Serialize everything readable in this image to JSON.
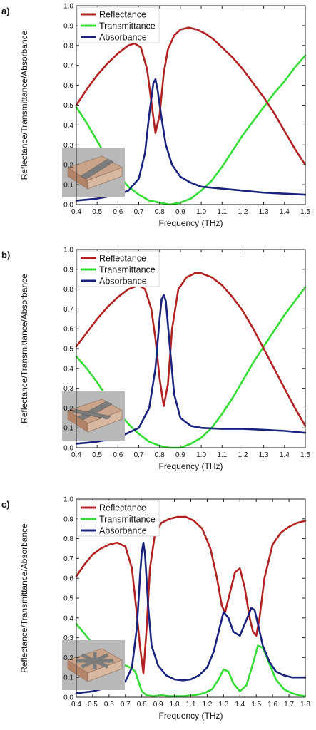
{
  "chart_data": [
    {
      "type": "line",
      "panel_label": "a)",
      "xlabel": "Frequency (THz)",
      "ylabel": "Reflectance/Transmittance/Absorbance",
      "xlim": [
        0.4,
        1.5
      ],
      "ylim": [
        0.0,
        1.0
      ],
      "xticks": [
        "0.4",
        "0.5",
        "0.6",
        "0.7",
        "0.8",
        "0.9",
        "1.0",
        "1.1",
        "1.2",
        "1.3",
        "1.4",
        "1.5"
      ],
      "yticks": [
        "0.0",
        "0.1",
        "0.2",
        "0.3",
        "0.4",
        "0.5",
        "0.6",
        "0.7",
        "0.8",
        "0.9",
        "1.0"
      ],
      "legend_position": "top-left",
      "grid": false,
      "inset_icon": "slab-with-bar-icon",
      "series": [
        {
          "name": "Reflectance",
          "color": "#b22222",
          "x": [
            0.4,
            0.45,
            0.5,
            0.55,
            0.6,
            0.65,
            0.68,
            0.71,
            0.74,
            0.76,
            0.78,
            0.8,
            0.82,
            0.84,
            0.87,
            0.9,
            0.94,
            0.98,
            1.02,
            1.06,
            1.1,
            1.15,
            1.2,
            1.25,
            1.3,
            1.35,
            1.4,
            1.45,
            1.5
          ],
          "y": [
            0.5,
            0.58,
            0.65,
            0.71,
            0.76,
            0.8,
            0.81,
            0.79,
            0.68,
            0.52,
            0.36,
            0.45,
            0.66,
            0.78,
            0.85,
            0.88,
            0.89,
            0.88,
            0.86,
            0.83,
            0.79,
            0.74,
            0.68,
            0.61,
            0.54,
            0.46,
            0.37,
            0.28,
            0.2
          ]
        },
        {
          "name": "Transmittance",
          "color": "#33dd33",
          "x": [
            0.4,
            0.45,
            0.5,
            0.55,
            0.6,
            0.65,
            0.7,
            0.75,
            0.8,
            0.85,
            0.9,
            0.95,
            1.0,
            1.05,
            1.1,
            1.15,
            1.2,
            1.25,
            1.3,
            1.35,
            1.4,
            1.45,
            1.5
          ],
          "y": [
            0.49,
            0.41,
            0.32,
            0.23,
            0.15,
            0.09,
            0.05,
            0.02,
            0.01,
            0.0,
            0.01,
            0.03,
            0.07,
            0.12,
            0.19,
            0.27,
            0.35,
            0.42,
            0.49,
            0.56,
            0.62,
            0.69,
            0.75
          ]
        },
        {
          "name": "Absorbance",
          "color": "#1a237e",
          "x": [
            0.4,
            0.5,
            0.6,
            0.65,
            0.7,
            0.73,
            0.75,
            0.77,
            0.78,
            0.79,
            0.81,
            0.83,
            0.86,
            0.9,
            0.95,
            1.0,
            1.1,
            1.2,
            1.3,
            1.4,
            1.5
          ],
          "y": [
            0.02,
            0.03,
            0.05,
            0.07,
            0.13,
            0.26,
            0.45,
            0.61,
            0.63,
            0.58,
            0.43,
            0.3,
            0.2,
            0.14,
            0.11,
            0.09,
            0.08,
            0.07,
            0.06,
            0.055,
            0.05
          ]
        }
      ]
    },
    {
      "type": "line",
      "panel_label": "b)",
      "xlabel": "Frequency (THz)",
      "ylabel": "Reflectance/Transmittance/Absorbance",
      "xlim": [
        0.4,
        1.5
      ],
      "ylim": [
        0.0,
        1.0
      ],
      "xticks": [
        "0.4",
        "0.5",
        "0.6",
        "0.7",
        "0.8",
        "0.9",
        "1.0",
        "1.1",
        "1.2",
        "1.3",
        "1.4",
        "1.5"
      ],
      "yticks": [
        "0.0",
        "0.1",
        "0.2",
        "0.3",
        "0.4",
        "0.5",
        "0.6",
        "0.7",
        "0.8",
        "0.9",
        "1.0"
      ],
      "legend_position": "top-left",
      "grid": false,
      "inset_icon": "slab-with-cross-icon",
      "series": [
        {
          "name": "Reflectance",
          "color": "#b22222",
          "x": [
            0.4,
            0.45,
            0.5,
            0.55,
            0.6,
            0.65,
            0.7,
            0.73,
            0.76,
            0.78,
            0.8,
            0.82,
            0.84,
            0.86,
            0.89,
            0.93,
            0.97,
            1.0,
            1.05,
            1.1,
            1.15,
            1.2,
            1.25,
            1.3,
            1.35,
            1.4,
            1.45,
            1.5
          ],
          "y": [
            0.51,
            0.58,
            0.65,
            0.71,
            0.76,
            0.8,
            0.82,
            0.8,
            0.7,
            0.55,
            0.35,
            0.21,
            0.32,
            0.6,
            0.8,
            0.86,
            0.88,
            0.88,
            0.86,
            0.82,
            0.76,
            0.69,
            0.6,
            0.5,
            0.4,
            0.3,
            0.2,
            0.11
          ]
        },
        {
          "name": "Transmittance",
          "color": "#33dd33",
          "x": [
            0.4,
            0.45,
            0.5,
            0.55,
            0.6,
            0.65,
            0.7,
            0.75,
            0.8,
            0.85,
            0.9,
            0.95,
            1.0,
            1.05,
            1.1,
            1.15,
            1.2,
            1.25,
            1.3,
            1.35,
            1.4,
            1.45,
            1.5
          ],
          "y": [
            0.46,
            0.4,
            0.33,
            0.25,
            0.18,
            0.12,
            0.07,
            0.03,
            0.01,
            0.0,
            0.0,
            0.02,
            0.05,
            0.1,
            0.17,
            0.25,
            0.34,
            0.43,
            0.51,
            0.59,
            0.67,
            0.74,
            0.81
          ]
        },
        {
          "name": "Absorbance",
          "color": "#1a237e",
          "x": [
            0.4,
            0.5,
            0.6,
            0.7,
            0.75,
            0.78,
            0.8,
            0.81,
            0.82,
            0.83,
            0.85,
            0.87,
            0.9,
            0.95,
            1.0,
            1.1,
            1.2,
            1.3,
            1.4,
            1.5
          ],
          "y": [
            0.02,
            0.03,
            0.05,
            0.1,
            0.2,
            0.4,
            0.65,
            0.75,
            0.77,
            0.74,
            0.5,
            0.27,
            0.15,
            0.11,
            0.1,
            0.095,
            0.095,
            0.09,
            0.085,
            0.075
          ]
        }
      ]
    },
    {
      "type": "line",
      "panel_label": "c)",
      "xlabel": "Frequency (THz)",
      "ylabel": "Reflectance/Transmittance/Absorbance",
      "xlim": [
        0.4,
        1.8
      ],
      "ylim": [
        0.0,
        1.0
      ],
      "xticks": [
        "0.4",
        "0.5",
        "0.6",
        "0.7",
        "0.8",
        "0.9",
        "1.0",
        "1.1",
        "1.2",
        "1.3",
        "1.4",
        "1.5",
        "1.6",
        "1.7",
        "1.8"
      ],
      "yticks": [
        "0.0",
        "0.1",
        "0.2",
        "0.3",
        "0.4",
        "0.5",
        "0.6",
        "0.7",
        "0.8",
        "0.9",
        "1.0"
      ],
      "legend_position": "top-left",
      "grid": false,
      "inset_icon": "slab-with-star-icon",
      "series": [
        {
          "name": "Reflectance",
          "color": "#b22222",
          "x": [
            0.4,
            0.45,
            0.5,
            0.55,
            0.6,
            0.65,
            0.7,
            0.74,
            0.77,
            0.79,
            0.81,
            0.83,
            0.85,
            0.88,
            0.92,
            0.97,
            1.02,
            1.07,
            1.12,
            1.17,
            1.22,
            1.26,
            1.29,
            1.31,
            1.34,
            1.37,
            1.4,
            1.43,
            1.46,
            1.48,
            1.5,
            1.52,
            1.55,
            1.6,
            1.65,
            1.7,
            1.75,
            1.8
          ],
          "y": [
            0.61,
            0.67,
            0.72,
            0.75,
            0.77,
            0.78,
            0.76,
            0.65,
            0.42,
            0.25,
            0.12,
            0.35,
            0.65,
            0.82,
            0.88,
            0.9,
            0.91,
            0.91,
            0.89,
            0.85,
            0.75,
            0.6,
            0.46,
            0.43,
            0.53,
            0.63,
            0.65,
            0.55,
            0.4,
            0.33,
            0.31,
            0.4,
            0.6,
            0.77,
            0.83,
            0.86,
            0.88,
            0.89
          ]
        },
        {
          "name": "Transmittance",
          "color": "#33dd33",
          "x": [
            0.4,
            0.45,
            0.5,
            0.55,
            0.6,
            0.65,
            0.7,
            0.73,
            0.76,
            0.78,
            0.8,
            0.83,
            0.87,
            0.92,
            0.97,
            1.05,
            1.12,
            1.18,
            1.23,
            1.27,
            1.3,
            1.33,
            1.36,
            1.4,
            1.44,
            1.48,
            1.51,
            1.54,
            1.58,
            1.62,
            1.67,
            1.72,
            1.76,
            1.8
          ],
          "y": [
            0.37,
            0.32,
            0.27,
            0.23,
            0.2,
            0.18,
            0.16,
            0.15,
            0.13,
            0.08,
            0.03,
            0.01,
            0.005,
            0.01,
            0.005,
            0.005,
            0.01,
            0.02,
            0.04,
            0.09,
            0.14,
            0.13,
            0.07,
            0.03,
            0.06,
            0.17,
            0.26,
            0.25,
            0.17,
            0.09,
            0.04,
            0.02,
            0.01,
            0.005
          ]
        },
        {
          "name": "Absorbance",
          "color": "#1a237e",
          "x": [
            0.4,
            0.5,
            0.6,
            0.7,
            0.74,
            0.77,
            0.79,
            0.8,
            0.81,
            0.82,
            0.84,
            0.86,
            0.9,
            0.95,
            1.0,
            1.05,
            1.1,
            1.15,
            1.2,
            1.24,
            1.27,
            1.3,
            1.33,
            1.36,
            1.4,
            1.44,
            1.47,
            1.49,
            1.51,
            1.54,
            1.58,
            1.62,
            1.67,
            1.72,
            1.76,
            1.8
          ],
          "y": [
            0.02,
            0.03,
            0.05,
            0.08,
            0.15,
            0.35,
            0.62,
            0.73,
            0.78,
            0.72,
            0.45,
            0.26,
            0.16,
            0.11,
            0.09,
            0.085,
            0.09,
            0.11,
            0.15,
            0.23,
            0.33,
            0.43,
            0.4,
            0.33,
            0.31,
            0.39,
            0.45,
            0.44,
            0.37,
            0.26,
            0.18,
            0.13,
            0.11,
            0.1,
            0.1,
            0.1
          ]
        }
      ]
    }
  ]
}
